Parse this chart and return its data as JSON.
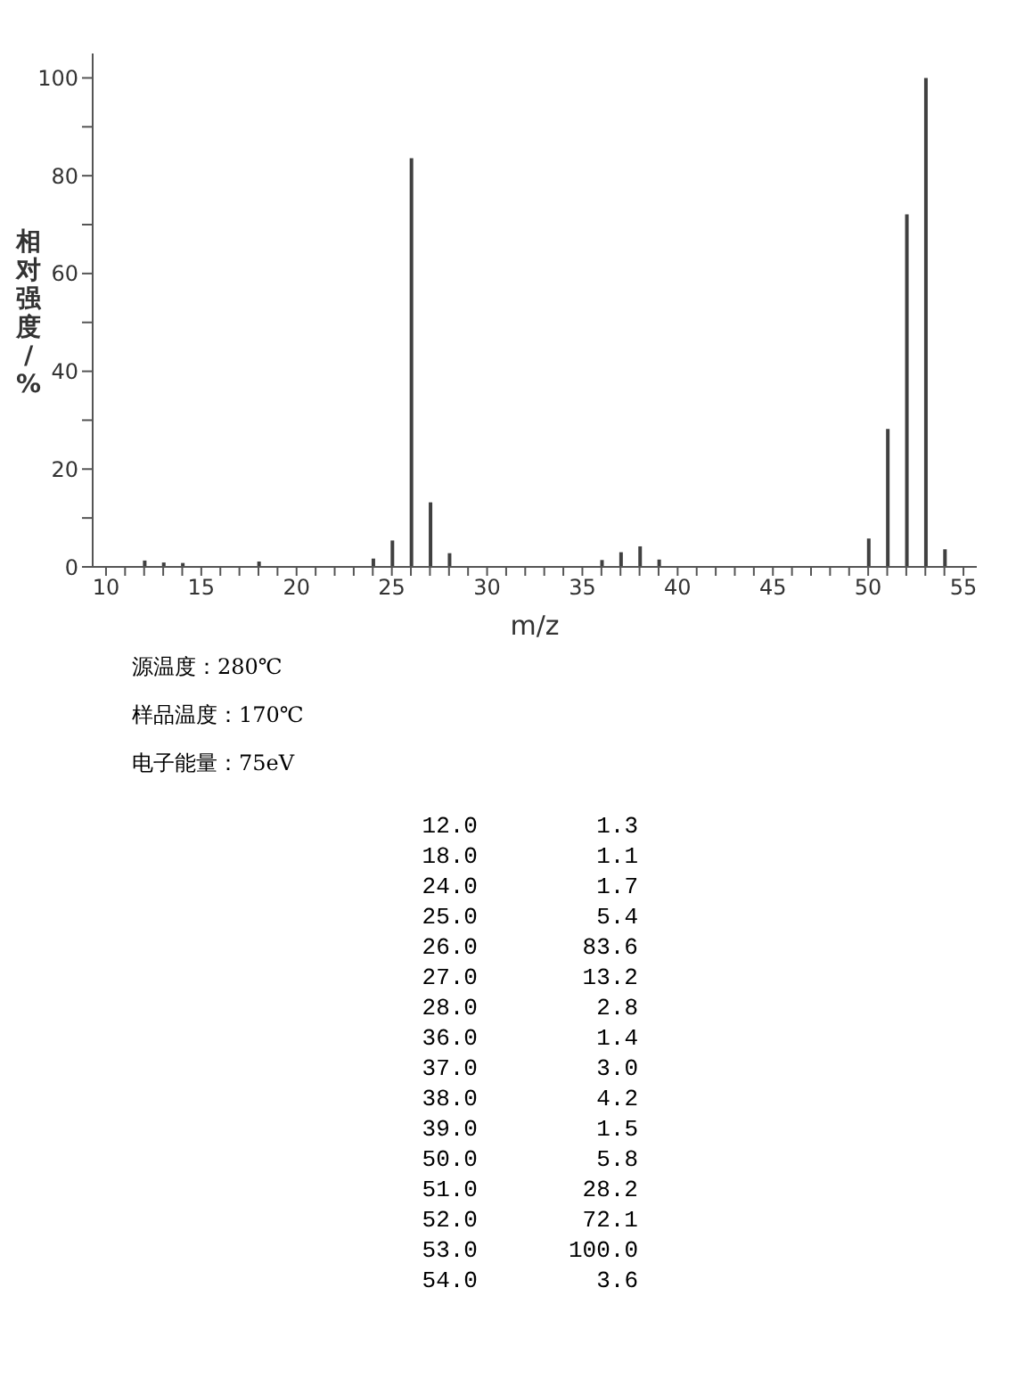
{
  "chart_data": {
    "type": "bar",
    "xlabel": "m/z",
    "ylabel": "相对强度/%",
    "x": [
      12,
      13,
      14,
      18,
      24,
      25,
      26,
      26.5,
      27,
      27.5,
      28,
      36,
      37,
      38,
      39,
      41,
      50,
      51,
      52,
      53,
      54
    ],
    "values": [
      1.3,
      0.9,
      0.8,
      1.1,
      1.7,
      5.4,
      83.6,
      null,
      13.2,
      null,
      2.8,
      1.4,
      3.0,
      4.2,
      1.5,
      null,
      5.8,
      28.2,
      72.1,
      100.0,
      3.6
    ],
    "color": "#404040",
    "xlim": [
      9.3,
      55.7
    ],
    "xticks": [
      10,
      {
        "value": 11,
        "label": null
      },
      {
        "value": 12,
        "label": null
      },
      {
        "value": 13,
        "label": null
      },
      {
        "value": 14,
        "label": null
      },
      15,
      {
        "value": 16,
        "label": null
      },
      {
        "value": 17,
        "label": null
      },
      {
        "value": 18,
        "label": null
      },
      {
        "value": 19,
        "label": null
      },
      20,
      {
        "value": 21,
        "label": null
      },
      {
        "value": 22,
        "label": null
      },
      {
        "value": 23,
        "label": null
      },
      {
        "value": 24,
        "label": null
      },
      25,
      {
        "value": 26,
        "label": null
      },
      {
        "value": 27,
        "label": null
      },
      {
        "value": 28,
        "label": null
      },
      {
        "value": 29,
        "label": null
      },
      30,
      {
        "value": 31,
        "label": null
      },
      {
        "value": 32,
        "label": null
      },
      {
        "value": 33,
        "label": null
      },
      {
        "value": 34,
        "label": null
      },
      35,
      {
        "value": 36,
        "label": null
      },
      {
        "value": 37,
        "label": null
      },
      {
        "value": 38,
        "label": null
      },
      {
        "value": 39,
        "label": null
      },
      40,
      {
        "value": 41,
        "label": null
      },
      {
        "value": 42,
        "label": null
      },
      {
        "value": 43,
        "label": null
      },
      {
        "value": 44,
        "label": null
      },
      45,
      {
        "value": 46,
        "label": null
      },
      {
        "value": 47,
        "label": null
      },
      {
        "value": 48,
        "label": null
      },
      {
        "value": 49,
        "label": null
      },
      50,
      {
        "value": 51,
        "label": null
      },
      {
        "value": 52,
        "label": null
      },
      {
        "value": 53,
        "label": null
      },
      {
        "value": 54,
        "label": null
      },
      55
    ],
    "ylim": [
      0,
      105
    ],
    "yticks": [
      0,
      {
        "value": 10,
        "label": null
      },
      20,
      {
        "value": 30,
        "label": null
      },
      40,
      {
        "value": 50,
        "label": null
      },
      60,
      {
        "value": 70,
        "label": null
      },
      80,
      {
        "value": 90,
        "label": null
      },
      100
    ],
    "grid": false,
    "annotations": [
      "源温度：280℃",
      "样品温度：170℃",
      "电子能量：75eV",
      "12.0",
      "1.3",
      "18.0",
      "1.1",
      "24.0",
      "1.7",
      "25.0",
      "5.4",
      "26.0",
      "83.6",
      "27.0",
      "13.2",
      "28.0",
      "2.8",
      "36.0",
      "1.4",
      "37.0",
      "3.0",
      "38.0",
      "4.2",
      "39.0",
      "1.5",
      "50.0",
      "5.8",
      "51.0",
      "28.2",
      "52.0",
      "72.1",
      "53.0",
      "100.0",
      "54.0",
      "3.6"
    ]
  }
}
